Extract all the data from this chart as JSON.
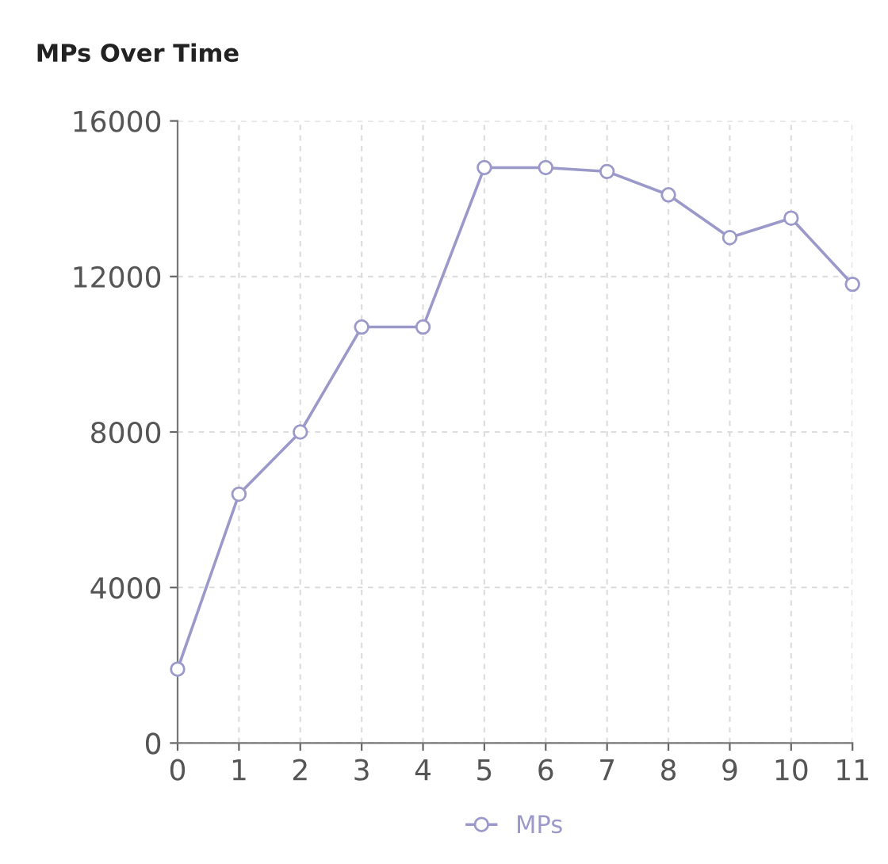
{
  "chart_data": {
    "type": "line",
    "title": "MPs Over Time",
    "x": [
      0,
      1,
      2,
      3,
      4,
      5,
      6,
      7,
      8,
      9,
      10,
      11
    ],
    "series": [
      {
        "name": "MPs",
        "color": "#9b99c9",
        "values": [
          1900,
          6400,
          8000,
          10700,
          10700,
          14800,
          14800,
          14700,
          14100,
          13000,
          13500,
          11800
        ]
      }
    ],
    "xlim": [
      0,
      11
    ],
    "xticks": [
      0,
      1,
      2,
      3,
      4,
      5,
      6,
      7,
      8,
      9,
      10,
      11
    ],
    "ylim": [
      0,
      16000
    ],
    "yticks": [
      0,
      4000,
      8000,
      12000,
      16000
    ],
    "grid": true,
    "legend": "bottom",
    "marker": "circle",
    "line_style": "solid"
  }
}
